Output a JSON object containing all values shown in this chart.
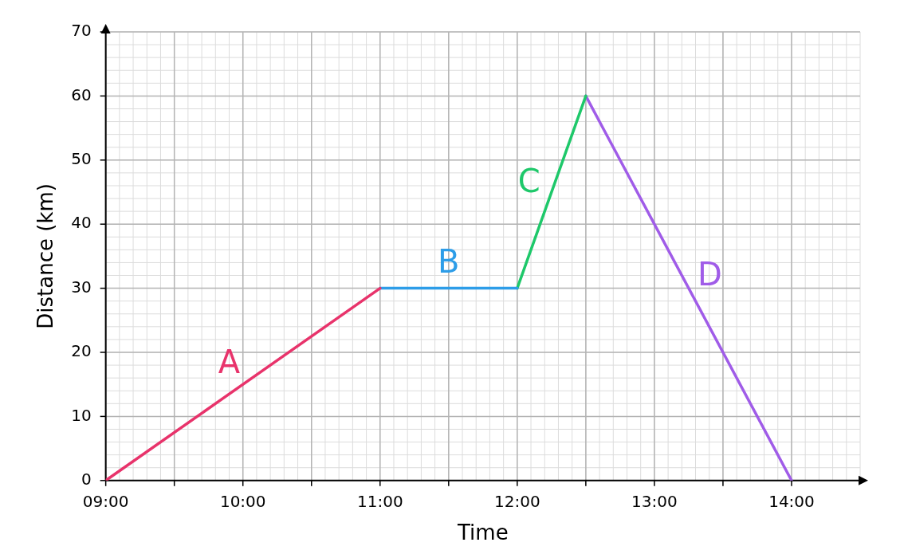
{
  "chart_data": {
    "type": "line",
    "xlabel": "Time",
    "ylabel": "Distance (km)",
    "xlim": [
      9,
      14.5
    ],
    "ylim": [
      0,
      70
    ],
    "xticks": [
      {
        "value": 9,
        "label": "09:00"
      },
      {
        "value": 9.5,
        "label": null
      },
      {
        "value": 10,
        "label": "10:00"
      },
      {
        "value": 10.5,
        "label": null
      },
      {
        "value": 11,
        "label": "11:00"
      },
      {
        "value": 11.5,
        "label": null
      },
      {
        "value": 12,
        "label": "12:00"
      },
      {
        "value": 12.5,
        "label": null
      },
      {
        "value": 13,
        "label": "13:00"
      },
      {
        "value": 13.5,
        "label": null
      },
      {
        "value": 14,
        "label": "14:00"
      }
    ],
    "yticks": [
      0,
      10,
      20,
      30,
      40,
      50,
      60,
      70
    ],
    "grid": true,
    "legend": false,
    "marker": "none",
    "line_style": "solid",
    "series": [
      {
        "name": "A",
        "color": "#e8336b",
        "x": [
          9,
          11
        ],
        "values": [
          0,
          30
        ]
      },
      {
        "name": "B",
        "color": "#2d9de8",
        "x": [
          11,
          12
        ],
        "values": [
          30,
          30
        ]
      },
      {
        "name": "C",
        "color": "#1ec86a",
        "x": [
          12,
          12.5
        ],
        "values": [
          30,
          60
        ]
      },
      {
        "name": "D",
        "color": "#a05ce8",
        "x": [
          12.5,
          14
        ],
        "values": [
          60,
          0
        ]
      }
    ]
  }
}
